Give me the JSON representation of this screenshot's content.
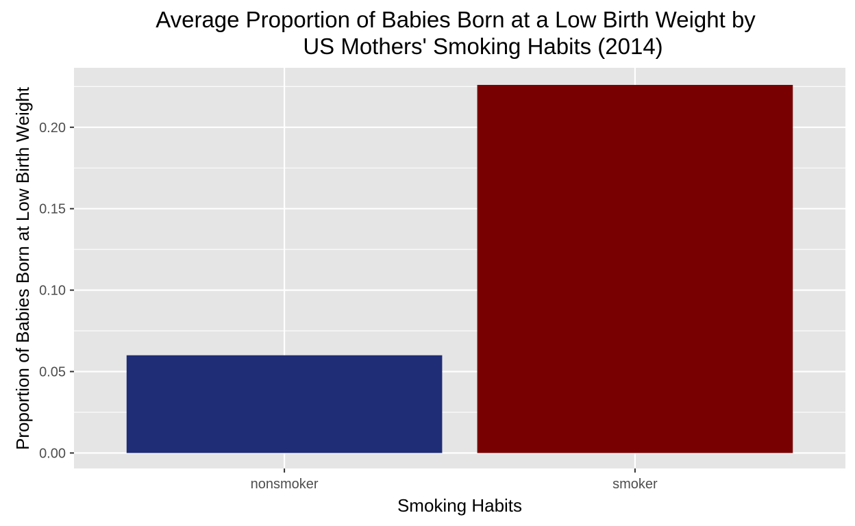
{
  "chart_data": {
    "type": "bar",
    "title": "Average Proportion of Babies Born at a Low Birth Weight by US Mothers' Smoking Habits (2014)",
    "title_lines": [
      "Average Proportion of Babies Born at a Low Birth Weight by",
      "US Mothers' Smoking Habits (2014)"
    ],
    "xlabel": "Smoking Habits",
    "ylabel": "Proportion of Babies Born at Low Birth Weight",
    "categories": [
      "nonsmoker",
      "smoker"
    ],
    "values": [
      0.06,
      0.226
    ],
    "bar_colors": [
      "#1f2d76",
      "#780000"
    ],
    "ylim": [
      -0.0095,
      0.2365
    ],
    "y_ticks": [
      0.0,
      0.05,
      0.1,
      0.15,
      0.2
    ],
    "y_tick_labels": [
      "0.00",
      "0.05",
      "0.10",
      "0.15",
      "0.20"
    ],
    "y_minor_ticks": [
      0.025,
      0.075,
      0.125,
      0.175,
      0.225
    ],
    "grid": true,
    "panel_background": "#e5e5e5",
    "grid_color": "#ffffff",
    "legend": "none"
  }
}
